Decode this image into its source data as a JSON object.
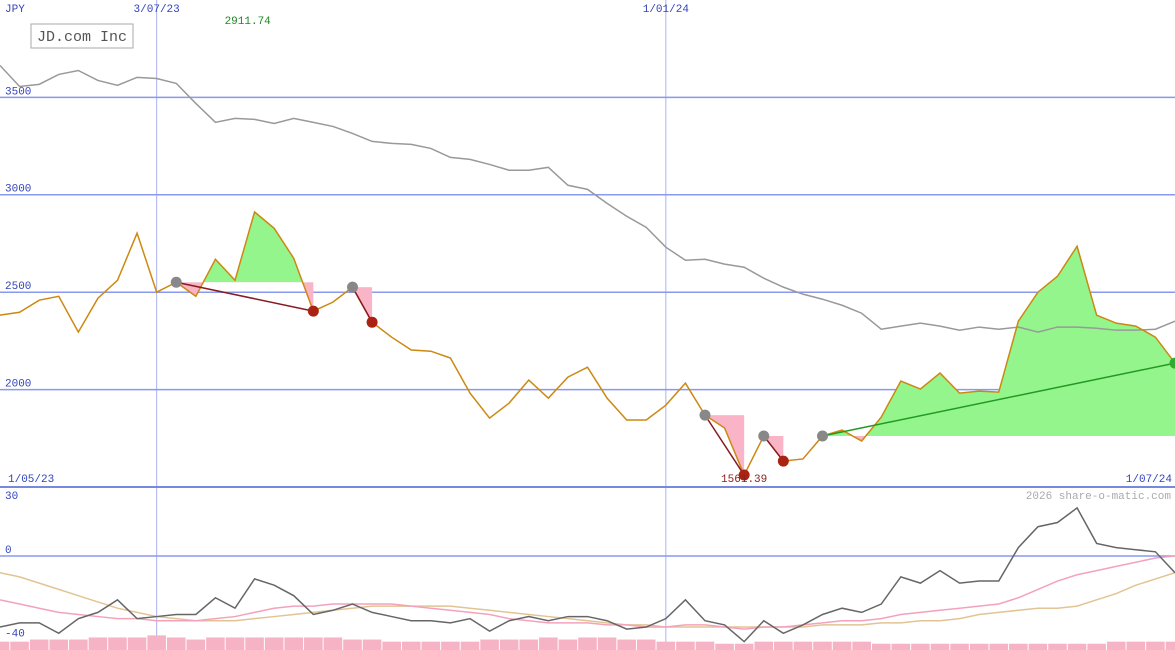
{
  "title": "JD.com Inc",
  "currency": "JPY",
  "credit": "2026 share-o-matic.com",
  "chart_data": [
    {
      "type": "line",
      "categories": [
        "1/05/23",
        null,
        null,
        null,
        null,
        null,
        null,
        null,
        "3/07/23",
        null,
        null,
        null,
        null,
        null,
        null,
        null,
        null,
        null,
        null,
        null,
        null,
        null,
        null,
        null,
        null,
        null,
        null,
        null,
        null,
        null,
        null,
        null,
        null,
        null,
        "1/01/24",
        null,
        null,
        null,
        null,
        null,
        null,
        null,
        null,
        null,
        null,
        null,
        null,
        null,
        null,
        null,
        null,
        null,
        null,
        null,
        null,
        null,
        null,
        null,
        null,
        null,
        "1/07/24"
      ],
      "ylim": [
        1500,
        4000
      ],
      "yticks": [
        2000,
        2500,
        3000,
        3500
      ],
      "grid": true,
      "series": [
        {
          "color": "#999999",
          "values": [
            3664,
            3556,
            3567,
            3618,
            3638,
            3587,
            3562,
            3603,
            3597,
            3572,
            3469,
            3372,
            3392,
            3387,
            3366,
            3392,
            3372,
            3351,
            3315,
            3274,
            3264,
            3259,
            3238,
            3192,
            3182,
            3156,
            3126,
            3126,
            3141,
            3049,
            3028,
            2956,
            2890,
            2833,
            2731,
            2664,
            2669,
            2644,
            2628,
            2572,
            2526,
            2490,
            2464,
            2433,
            2392,
            2310,
            2326,
            2341,
            2326,
            2305,
            2321,
            2310,
            2321,
            2295,
            2321,
            2321,
            2315,
            2305,
            2305,
            2310,
            2351
          ]
        },
        {
          "color": "#cc8811",
          "values": [
            2382,
            2397,
            2459,
            2479,
            2295,
            2469,
            2561,
            2803,
            2500,
            2551,
            2479,
            2669,
            2561,
            2911.74,
            2828,
            2674,
            2403,
            2449,
            2526,
            2346,
            2269,
            2203,
            2197,
            2162,
            1982,
            1854,
            1931,
            2049,
            1956,
            2064,
            2115,
            1956,
            1844,
            1844,
            1920,
            2033,
            1869,
            1803,
            1561.39,
            1762,
            1633,
            1644,
            1762,
            1792,
            1736,
            1859,
            2044,
            2003,
            2085,
            1982,
            1992,
            1987,
            2351,
            2500,
            2582,
            2736,
            2382,
            2341,
            2326,
            2269,
            2136
          ]
        }
      ],
      "signals": [
        {
          "from": 9,
          "to": 16,
          "color": "#881a22"
        },
        {
          "from": 18,
          "to": 19,
          "color": "#881a22"
        },
        {
          "from": 36,
          "to": 38,
          "color": "#881a22"
        },
        {
          "from": 39,
          "to": 40,
          "color": "#881a22"
        },
        {
          "from": 42,
          "to": 60,
          "color": "#229922"
        }
      ],
      "annotations": [
        {
          "text": "2911.74",
          "color": "#228822"
        },
        {
          "text": "1561.39",
          "color": "#882222"
        }
      ]
    },
    {
      "type": "line",
      "ylim": [
        -45,
        33
      ],
      "yticks": [
        30,
        0,
        -40
      ],
      "zero_line": true,
      "bars": {
        "color": "#f7b3c6",
        "values": [
          -41,
          -41,
          -40,
          -40,
          -40,
          -39,
          -39,
          -39,
          -38,
          -39,
          -40,
          -39,
          -39,
          -39,
          -39,
          -39,
          -39,
          -39,
          -40,
          -40,
          -41,
          -41,
          -41,
          -41,
          -41,
          -40,
          -40,
          -40,
          -39,
          -40,
          -39,
          -39,
          -40,
          -40,
          -41,
          -41,
          -41,
          -42,
          -42,
          -41,
          -41,
          -41,
          -41,
          -41,
          -41,
          -42,
          -42,
          -42,
          -42,
          -42,
          -42,
          -42,
          -42,
          -42,
          -42,
          -42,
          -42,
          -41,
          -41,
          -41,
          -41
        ]
      },
      "series": [
        {
          "color": "#e2c494",
          "values": [
            -8,
            -10,
            -13,
            -16,
            -19,
            -22,
            -25,
            -27,
            -29,
            -30,
            -31,
            -31,
            -31,
            -30,
            -29,
            -28,
            -27,
            -26,
            -25,
            -24,
            -24,
            -24,
            -24,
            -24,
            -25,
            -26,
            -27,
            -28,
            -29,
            -30,
            -31,
            -32,
            -33,
            -33,
            -34,
            -34,
            -34,
            -34,
            -34,
            -34,
            -34,
            -34,
            -33,
            -33,
            -33,
            -32,
            -32,
            -31,
            -31,
            -30,
            -28,
            -27,
            -26,
            -25,
            -25,
            -24,
            -21,
            -18,
            -14,
            -11,
            -8
          ]
        },
        {
          "color": "#f4a2bc",
          "values": [
            -21,
            -23,
            -25,
            -27,
            -28,
            -29,
            -30,
            -30,
            -31,
            -31,
            -31,
            -30,
            -29,
            -27,
            -25,
            -24,
            -24,
            -23,
            -23,
            -23,
            -23,
            -24,
            -25,
            -26,
            -27,
            -28,
            -30,
            -31,
            -32,
            -32,
            -32,
            -33,
            -33,
            -34,
            -34,
            -33,
            -33,
            -34,
            -35,
            -34,
            -34,
            -33,
            -32,
            -31,
            -31,
            -30,
            -28,
            -27,
            -26,
            -25,
            -24,
            -23,
            -20,
            -16,
            -12,
            -9,
            -7,
            -5,
            -3,
            -1,
            0
          ]
        },
        {
          "color": "#666666",
          "values": [
            -34,
            -32,
            -32,
            -37,
            -30,
            -27,
            -21,
            -30,
            -29,
            -28,
            -28,
            -20,
            -25,
            -11,
            -14,
            -19,
            -28,
            -26,
            -23,
            -27,
            -29,
            -31,
            -31,
            -32,
            -30,
            -36,
            -31,
            -29,
            -31,
            -29,
            -29,
            -31,
            -35,
            -34,
            -30,
            -21,
            -31,
            -33,
            -41,
            -31,
            -37,
            -33,
            -28,
            -25,
            -27,
            -23,
            -10,
            -13,
            -7,
            -13,
            -12,
            -12,
            4,
            14,
            16,
            23,
            6,
            4,
            3,
            2,
            -8
          ]
        }
      ]
    }
  ]
}
